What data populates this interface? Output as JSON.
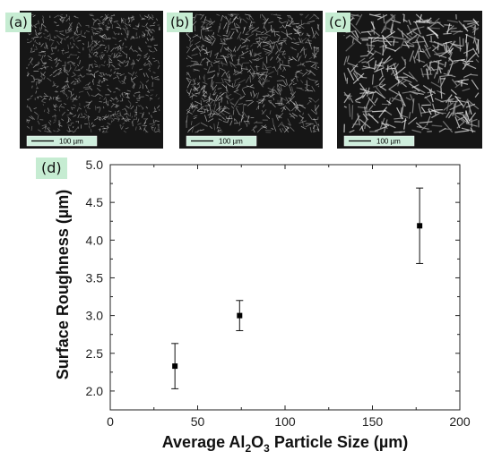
{
  "panels": [
    {
      "label": "(a)",
      "scale_text": "100 µm"
    },
    {
      "label": "(b)",
      "scale_text": "100 µm"
    },
    {
      "label": "(c)",
      "scale_text": "100 µm"
    }
  ],
  "chart_label": "(d)",
  "chart_data": {
    "type": "scatter",
    "title": "",
    "xlabel_parts": {
      "pre": "Average Al",
      "sub1": "2",
      "mid": "O",
      "sub2": "3",
      "post": " Particle Size (µm)"
    },
    "ylabel": "Surface Roughness (µm)",
    "xlim": [
      0,
      200
    ],
    "ylim": [
      1.75,
      5.0
    ],
    "xticks": [
      0,
      50,
      100,
      150,
      200
    ],
    "yticks": [
      2.0,
      2.5,
      3.0,
      3.5,
      4.0,
      4.5,
      5.0
    ],
    "xtick_labels": [
      "0",
      "50",
      "100",
      "150",
      "200"
    ],
    "ytick_labels": [
      "2.0",
      "2.5",
      "3.0",
      "3.5",
      "4.0",
      "4.5",
      "5.0"
    ],
    "points": [
      {
        "x": 37,
        "y": 2.33,
        "err": 0.3
      },
      {
        "x": 74,
        "y": 3.0,
        "err": 0.2
      },
      {
        "x": 177,
        "y": 4.19,
        "err": 0.5
      }
    ],
    "grid": false
  }
}
